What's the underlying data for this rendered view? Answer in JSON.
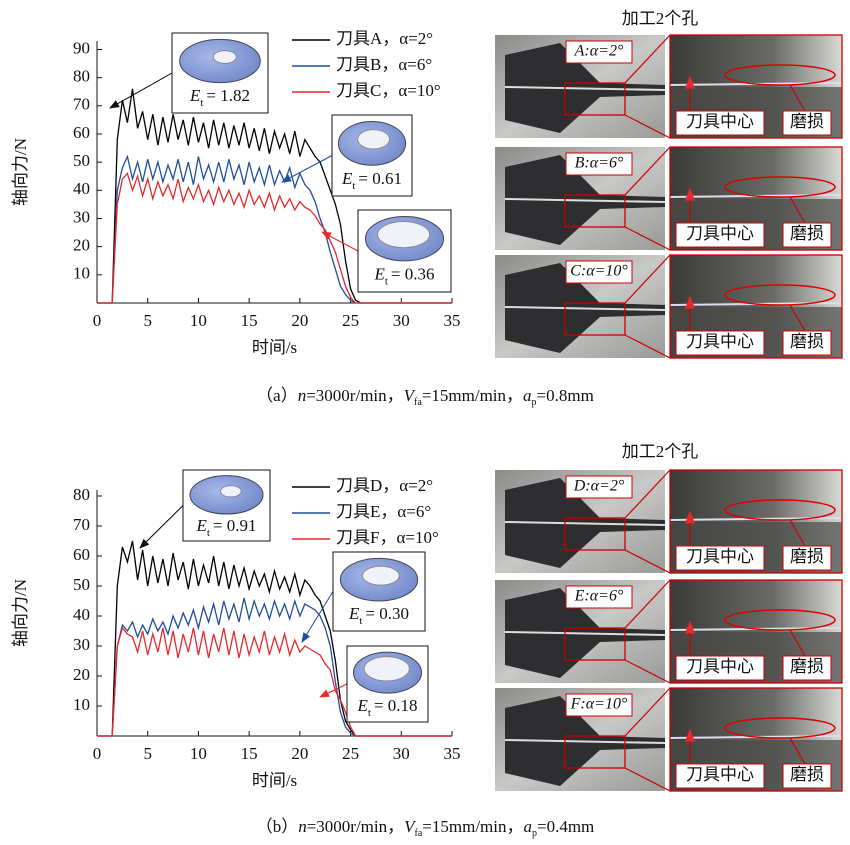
{
  "chart_data": [
    {
      "type": "line",
      "xlabel": "时间/s",
      "ylabel": "轴向力/N",
      "xlim": [
        0,
        35
      ],
      "xticks": [
        0,
        5,
        10,
        15,
        20,
        25,
        30,
        35
      ],
      "ylim": [
        0,
        93
      ],
      "yticks": [
        10,
        20,
        30,
        40,
        50,
        60,
        70,
        80,
        90
      ],
      "x": [
        0,
        1.5,
        2,
        2.5,
        3,
        3.5,
        4,
        4.5,
        5,
        5.5,
        6,
        6.5,
        7,
        7.5,
        8,
        8.5,
        9,
        9.5,
        10,
        10.5,
        11,
        11.5,
        12,
        12.5,
        13,
        13.5,
        14,
        14.5,
        15,
        15.5,
        16,
        16.5,
        17,
        17.5,
        18,
        18.5,
        19,
        19.5,
        20,
        20.5,
        21,
        21.5,
        22,
        22.5,
        23,
        23.5,
        24,
        24.5,
        25,
        25.5,
        26,
        26.5,
        27,
        35
      ],
      "series": [
        {
          "name": "刀具A，α=2°",
          "color": "#000000",
          "values": [
            0,
            0,
            58,
            72,
            64,
            76,
            62,
            68,
            58,
            67,
            56,
            66,
            57,
            67,
            58,
            65,
            56,
            66,
            57,
            64,
            55,
            65,
            56,
            64,
            55,
            63,
            56,
            64,
            55,
            62,
            54,
            62,
            53,
            61,
            55,
            60,
            53,
            61,
            52,
            58,
            55,
            52,
            50,
            45,
            40,
            35,
            28,
            15,
            5,
            1,
            0,
            0,
            0,
            0
          ]
        },
        {
          "name": "刀具B，α=6°",
          "color": "#1f4e9c",
          "values": [
            0,
            0,
            40,
            48,
            52,
            44,
            50,
            43,
            51,
            44,
            50,
            43,
            49,
            44,
            51,
            43,
            50,
            42,
            52,
            44,
            49,
            43,
            50,
            43,
            51,
            44,
            49,
            42,
            50,
            43,
            48,
            42,
            49,
            42,
            47,
            43,
            48,
            41,
            46,
            42,
            40,
            36,
            30,
            25,
            18,
            12,
            6,
            3,
            1,
            0,
            0,
            0,
            0,
            0
          ]
        },
        {
          "name": "刀具C，α=10°",
          "color": "#e8282b",
          "values": [
            0,
            0,
            35,
            44,
            46,
            40,
            45,
            38,
            44,
            37,
            43,
            38,
            42,
            37,
            44,
            36,
            41,
            37,
            42,
            36,
            40,
            35,
            41,
            36,
            40,
            35,
            39,
            34,
            40,
            35,
            38,
            34,
            39,
            33,
            38,
            34,
            37,
            33,
            36,
            34,
            33,
            31,
            28,
            26,
            22,
            18,
            12,
            6,
            2,
            0,
            0,
            0,
            0,
            0
          ]
        }
      ],
      "annotations": [
        {
          "symbol": "E",
          "subscript": "t",
          "text": "= 1.82"
        },
        {
          "symbol": "E",
          "subscript": "t",
          "text": "= 0.61"
        },
        {
          "symbol": "E",
          "subscript": "t",
          "text": "= 0.36"
        }
      ],
      "photo_title": "加工2个孔",
      "photos": [
        {
          "label": "A:α=2°",
          "center": "刀具中心",
          "wear": "磨损"
        },
        {
          "label": "B:α=6°",
          "center": "刀具中心",
          "wear": "磨损"
        },
        {
          "label": "C:α=10°",
          "center": "刀具中心",
          "wear": "磨损"
        }
      ],
      "caption": [
        "（a）",
        "n",
        "=3000r/min，",
        "V",
        "fa",
        "=15mm/min，",
        "a",
        "p",
        "=0.8mm"
      ]
    },
    {
      "type": "line",
      "xlabel": "时间/s",
      "ylabel": "轴向力/N",
      "xlim": [
        0,
        35
      ],
      "xticks": [
        0,
        5,
        10,
        15,
        20,
        25,
        30,
        35
      ],
      "ylim": [
        0,
        82
      ],
      "yticks": [
        10,
        20,
        30,
        40,
        50,
        60,
        70,
        80
      ],
      "x": [
        0,
        1.5,
        2,
        2.5,
        3,
        3.5,
        4,
        4.5,
        5,
        5.5,
        6,
        6.5,
        7,
        7.5,
        8,
        8.5,
        9,
        9.5,
        10,
        10.5,
        11,
        11.5,
        12,
        12.5,
        13,
        13.5,
        14,
        14.5,
        15,
        15.5,
        16,
        16.5,
        17,
        17.5,
        18,
        18.5,
        19,
        19.5,
        20,
        20.5,
        21,
        21.5,
        22,
        22.5,
        23,
        23.5,
        24,
        24.5,
        25,
        25.5,
        26,
        26.5,
        27,
        35
      ],
      "series": [
        {
          "name": "刀具D，α=2°",
          "color": "#000000",
          "values": [
            0,
            0,
            50,
            63,
            58,
            65,
            52,
            62,
            50,
            60,
            51,
            59,
            50,
            61,
            52,
            58,
            49,
            59,
            50,
            57,
            51,
            60,
            50,
            58,
            49,
            57,
            50,
            56,
            49,
            55,
            50,
            54,
            48,
            55,
            49,
            53,
            48,
            54,
            47,
            52,
            50,
            47,
            45,
            40,
            35,
            25,
            12,
            5,
            2,
            0,
            0,
            0,
            0,
            0
          ]
        },
        {
          "name": "刀具E，α=6°",
          "color": "#1f4e9c",
          "values": [
            0,
            0,
            30,
            37,
            35,
            38,
            33,
            37,
            34,
            39,
            35,
            38,
            34,
            40,
            36,
            41,
            37,
            42,
            36,
            43,
            38,
            44,
            37,
            45,
            39,
            44,
            38,
            46,
            39,
            45,
            40,
            44,
            39,
            45,
            40,
            44,
            39,
            45,
            40,
            44,
            43,
            42,
            40,
            36,
            30,
            18,
            8,
            3,
            1,
            0,
            0,
            0,
            0,
            0
          ]
        },
        {
          "name": "刀具F，α=10°",
          "color": "#e8282b",
          "values": [
            0,
            0,
            30,
            36,
            34,
            33,
            28,
            35,
            27,
            34,
            28,
            36,
            27,
            35,
            26,
            34,
            28,
            36,
            27,
            35,
            26,
            34,
            28,
            36,
            27,
            35,
            26,
            34,
            27,
            33,
            28,
            35,
            27,
            33,
            28,
            34,
            27,
            32,
            28,
            30,
            29,
            28,
            27,
            24,
            22,
            15,
            12,
            8,
            3,
            0,
            0,
            0,
            0,
            0
          ]
        }
      ],
      "annotations": [
        {
          "symbol": "E",
          "subscript": "t",
          "text": "= 0.91"
        },
        {
          "symbol": "E",
          "subscript": "t",
          "text": "= 0.30"
        },
        {
          "symbol": "E",
          "subscript": "t",
          "text": "= 0.18"
        }
      ],
      "photo_title": "加工2个孔",
      "photos": [
        {
          "label": "D:α=2°",
          "center": "刀具中心",
          "wear": "磨损"
        },
        {
          "label": "E:α=6°",
          "center": "刀具中心",
          "wear": "磨损"
        },
        {
          "label": "F:α=10°",
          "center": "刀具中心",
          "wear": "磨损"
        }
      ],
      "caption": [
        "（b）",
        "n",
        "=3000r/min，",
        "V",
        "fa",
        "=15mm/min，",
        "a",
        "p",
        "=0.4mm"
      ]
    }
  ]
}
